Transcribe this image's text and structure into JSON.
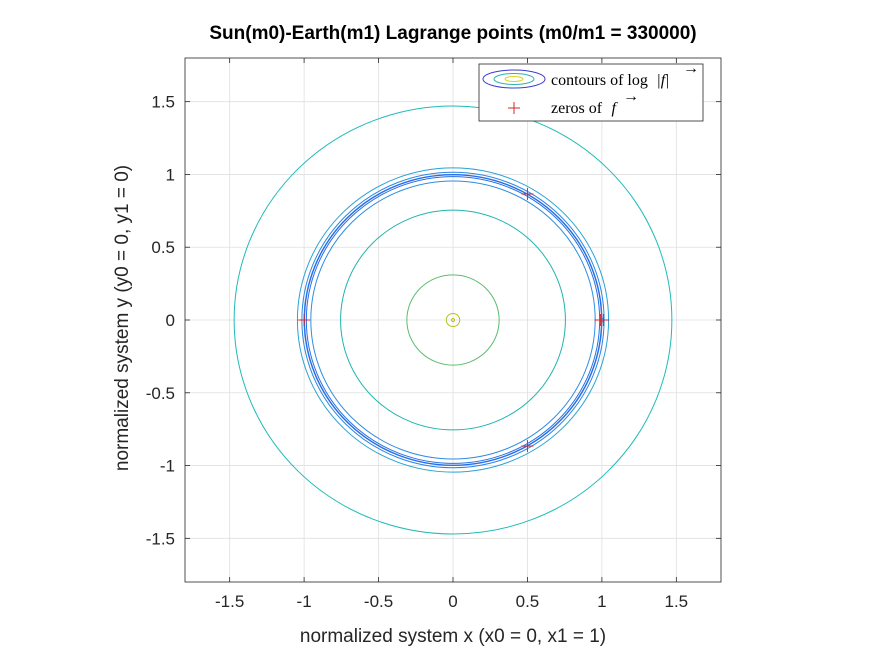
{
  "chart_data": {
    "type": "contour",
    "title": "Sun(m0)-Earth(m1) Lagrange points (m0/m1 = 330000)",
    "xlabel": "normalized system x (x0 = 0, x1 = 1)",
    "ylabel": "normalized system y (y0 = 0, y1 = 0)",
    "xlim": [
      -1.8,
      1.8
    ],
    "ylim": [
      -1.8,
      1.8
    ],
    "xticks": [
      -1.5,
      -1,
      -0.5,
      0,
      0.5,
      1,
      1.5
    ],
    "xtick_labels": [
      "-1.5",
      "-1",
      "-0.5",
      "0",
      "0.5",
      "1",
      "1.5"
    ],
    "yticks": [
      -1.5,
      -1,
      -0.5,
      0,
      0.5,
      1,
      1.5
    ],
    "ytick_labels": [
      "-1.5",
      "-1",
      "-0.5",
      "0",
      "0.5",
      "1",
      "1.5"
    ],
    "grid": true,
    "legend_placement": "top-right",
    "legend": [
      {
        "label": "contours of log",
        "symbol": "|f|",
        "marker": "contour"
      },
      {
        "label": "zeros of",
        "symbol": "f",
        "marker": "plus"
      }
    ],
    "contours": [
      {
        "r": 0.01,
        "cx": 0,
        "cy": 0,
        "color": "#c8b81c"
      },
      {
        "r": 0.045,
        "cx": 0,
        "cy": 0,
        "color": "#b9c01e"
      },
      {
        "r": 0.31,
        "cx": 0,
        "cy": 0,
        "color": "#5cbc6e"
      },
      {
        "r": 0.755,
        "cx": 0,
        "cy": 0,
        "color": "#20b4b0"
      },
      {
        "r": 0.955,
        "cx": 0,
        "cy": 0,
        "color": "#2f8de0"
      },
      {
        "r": 0.985,
        "cx": 0,
        "cy": 0,
        "color": "#2772e6"
      },
      {
        "r": 0.997,
        "cx": 0,
        "cy": 0,
        "color": "#2467e0"
      },
      {
        "r": 1.0,
        "cx": 0,
        "cy": 0,
        "color": "#2a6fe8"
      },
      {
        "r": 1.015,
        "cx": 0,
        "cy": 0,
        "color": "#2a86e4"
      },
      {
        "r": 1.045,
        "cx": 0,
        "cy": 0,
        "color": "#2aa2d4"
      },
      {
        "r": 1.47,
        "cx": 0,
        "cy": 0,
        "color": "#1fbbb8"
      },
      {
        "r": 0.012,
        "cx": 1.0,
        "cy": 0,
        "color": "#2a86e4"
      }
    ],
    "zeros": [
      {
        "x": -1.0,
        "y": 0.0
      },
      {
        "x": 0.5,
        "y": 0.866
      },
      {
        "x": 0.5,
        "y": -0.866
      },
      {
        "x": 0.99,
        "y": 0.0
      },
      {
        "x": 1.01,
        "y": 0.0
      }
    ],
    "colors": {
      "zero_marker": "#d62728",
      "grid": "#dfdfdf",
      "axis": "#262626",
      "legend_outer": "#3b3bd0",
      "legend_mid": "#29b3b0",
      "legend_inner": "#d6d21a"
    }
  }
}
